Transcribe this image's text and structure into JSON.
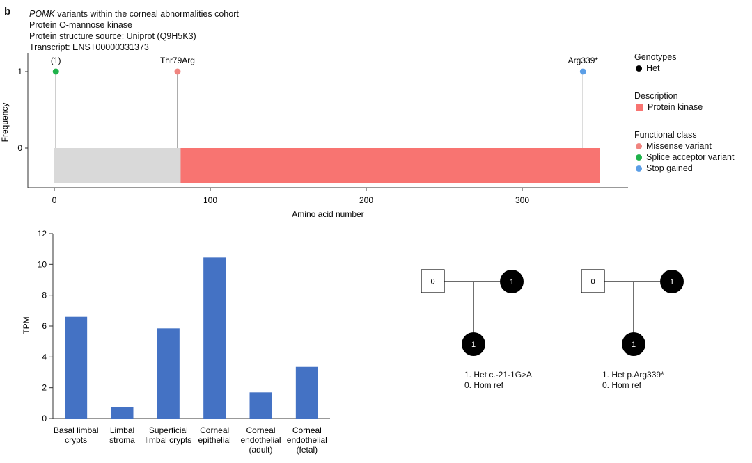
{
  "panel_label": "b",
  "header": {
    "title_gene": "POMK",
    "title_rest": " variants within the corneal abnormalities cohort",
    "protein_name": "Protein O-mannose kinase",
    "structure_source": "Protein structure source: Uniprot (Q9H5K3)",
    "transcript": "Transcript: ENST00000331373"
  },
  "chart_data": [
    {
      "type": "lollipop",
      "xlabel": "Amino acid number",
      "ylabel": "Frequency",
      "xlim": [
        -10,
        365
      ],
      "x_ticks": [
        0,
        100,
        200,
        300
      ],
      "y_ticks": [
        0,
        1
      ],
      "protein_length": 350,
      "domains": [
        {
          "name": "Protein kinase",
          "start": 81,
          "end": 350,
          "color": "#f87471"
        }
      ],
      "backbone_color": "#d9d9d9",
      "variants": [
        {
          "label": "(1)",
          "position": 1,
          "frequency": 1,
          "class": "Splice acceptor variant",
          "color": "#1fb24a"
        },
        {
          "label": "Thr79Arg",
          "position": 79,
          "frequency": 1,
          "class": "Missense variant",
          "color": "#f0847f"
        },
        {
          "label": "Arg339*",
          "position": 339,
          "frequency": 1,
          "class": "Stop gained",
          "color": "#5b9ee6"
        }
      ],
      "legend": {
        "genotypes_title": "Genotypes",
        "genotypes": [
          {
            "name": "Het",
            "color": "#000000"
          }
        ],
        "description_title": "Description",
        "descriptions": [
          {
            "name": "Protein kinase",
            "color": "#f87471"
          }
        ],
        "functional_title": "Functional class",
        "functional": [
          {
            "name": "Missense variant",
            "color": "#f0847f"
          },
          {
            "name": "Splice acceptor variant",
            "color": "#1fb24a"
          },
          {
            "name": "Stop gained",
            "color": "#5b9ee6"
          }
        ]
      }
    },
    {
      "type": "bar",
      "ylabel": "TPM",
      "ylim": [
        0,
        12
      ],
      "y_ticks": [
        0,
        2,
        4,
        6,
        8,
        10,
        12
      ],
      "bar_color": "#4472c4",
      "categories": [
        [
          "Basal limbal",
          "crypts"
        ],
        [
          "Limbal",
          "stroma"
        ],
        [
          "Superficial",
          "limbal crypts"
        ],
        [
          "Corneal",
          "epithelial"
        ],
        [
          "Corneal",
          "endothelial",
          "(adult)"
        ],
        [
          "Corneal",
          "endothelial",
          "(fetal)"
        ]
      ],
      "values": [
        6.6,
        0.75,
        5.85,
        10.45,
        1.7,
        3.35
      ]
    }
  ],
  "pedigrees": [
    {
      "father_label": "0",
      "mother_label": "1",
      "child_label": "1",
      "legend": [
        "1. Het c.-21-1G>A",
        "0. Hom ref"
      ]
    },
    {
      "father_label": "0",
      "mother_label": "1",
      "child_label": "1",
      "legend": [
        "1. Het p.Arg339*",
        "0. Hom ref"
      ]
    }
  ]
}
